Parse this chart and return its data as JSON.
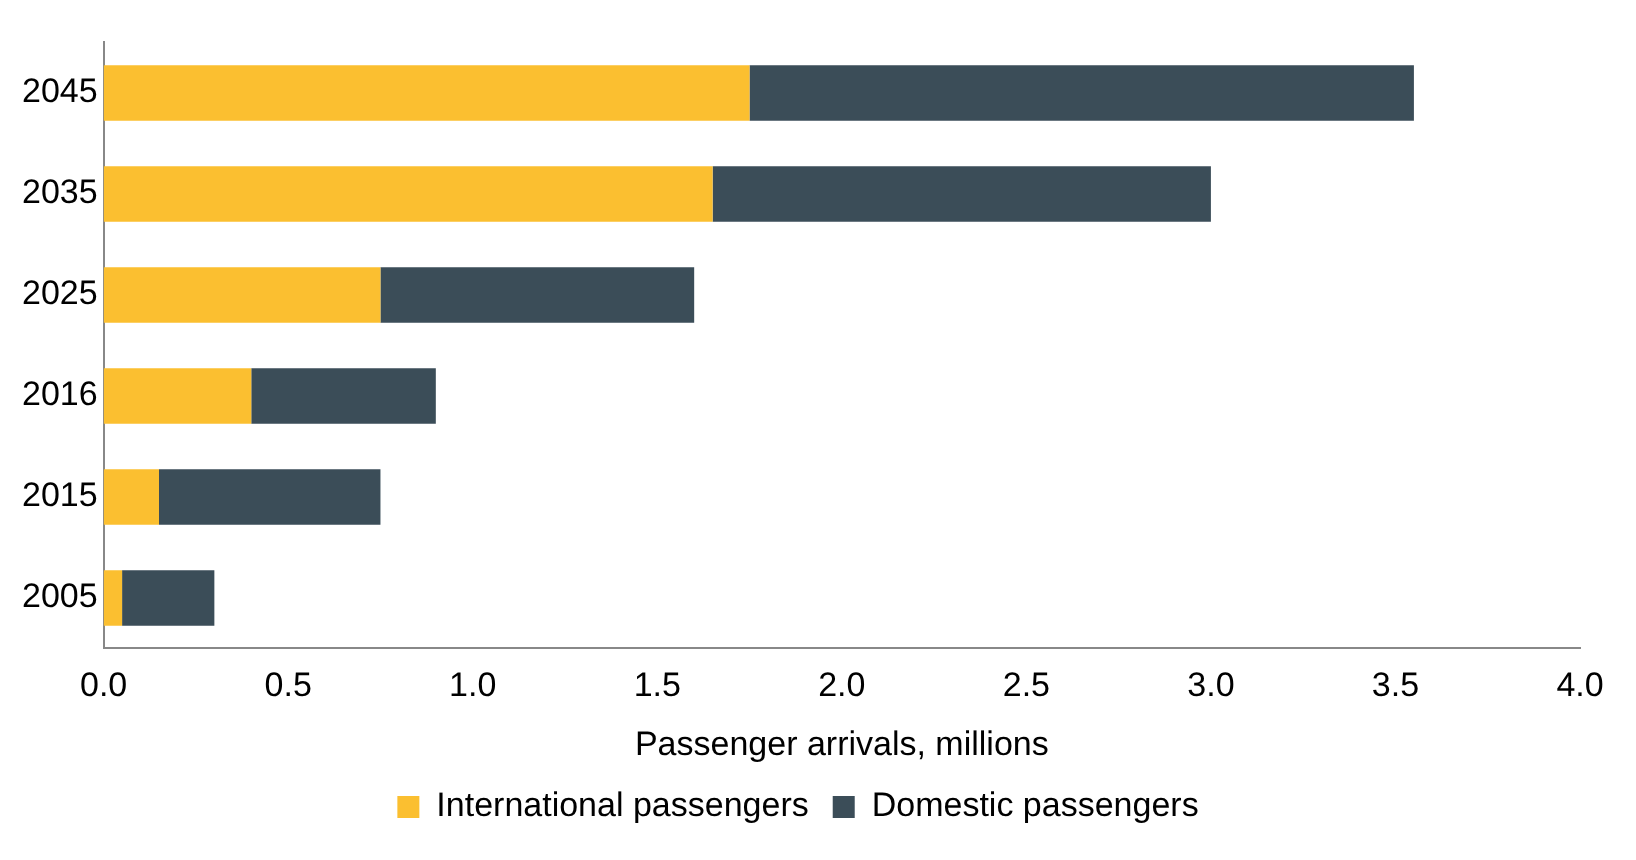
{
  "chart_data": {
    "type": "bar",
    "orientation": "horizontal",
    "stacked": true,
    "xlabel": "Passenger arrivals, millions",
    "categories": [
      "2045",
      "2035",
      "2025",
      "2016",
      "2015",
      "2005"
    ],
    "series": [
      {
        "name": "International passengers",
        "color": "#fbbf30",
        "values": [
          1.75,
          1.65,
          0.75,
          0.4,
          0.15,
          0.05
        ]
      },
      {
        "name": "Domestic passengers",
        "color": "#3b4d58",
        "values": [
          1.8,
          1.35,
          0.85,
          0.5,
          0.6,
          0.25
        ]
      }
    ],
    "xlim": [
      0,
      4
    ],
    "xticks": [
      {
        "value": 0,
        "label": "0.0"
      },
      {
        "value": 0.5,
        "label": "0.5"
      },
      {
        "value": 1,
        "label": "1.0"
      },
      {
        "value": 1.5,
        "label": "1.5"
      },
      {
        "value": 2,
        "label": "2.0"
      },
      {
        "value": 2.5,
        "label": "2.5"
      },
      {
        "value": 3,
        "label": "3.0"
      },
      {
        "value": 3.5,
        "label": "3.5"
      },
      {
        "value": 4,
        "label": "4.0"
      }
    ],
    "grid": false,
    "legend": "bottom"
  }
}
